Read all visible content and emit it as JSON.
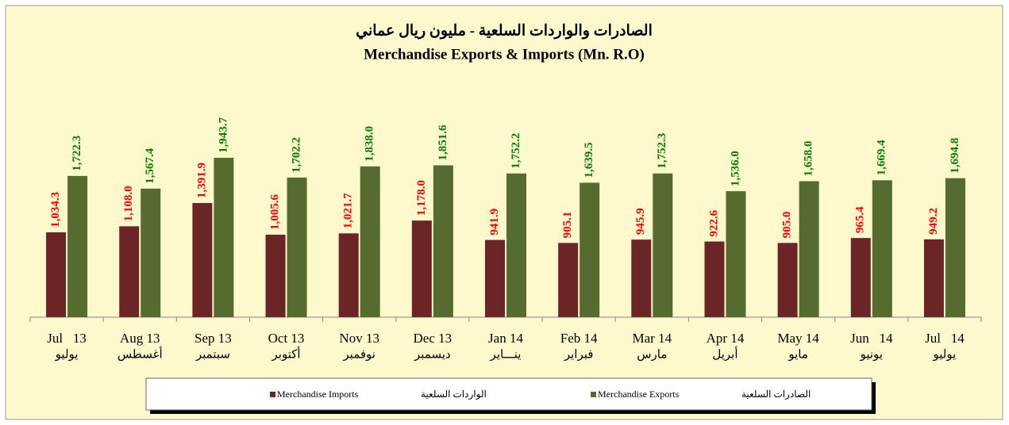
{
  "chart_data": {
    "type": "bar",
    "title": "الصادرات والواردات السلعية - مليون ريال عماني",
    "subtitle": "Merchandise Exports & Imports (Mn. R.O)",
    "categories": [
      [
        "Jul   13",
        "يوليو"
      ],
      [
        "Aug 13",
        "أغسطس"
      ],
      [
        "Sep 13",
        "سبتمبر"
      ],
      [
        "Oct 13",
        "أكتوبر"
      ],
      [
        "Nov 13",
        "نوفمبر"
      ],
      [
        "Dec 13",
        "ديسمبر"
      ],
      [
        "Jan 14",
        "ينـــاير"
      ],
      [
        "Feb 14",
        "فبراير"
      ],
      [
        "Mar 14",
        "مارس"
      ],
      [
        "Apr 14",
        "أبريل"
      ],
      [
        "May 14",
        "مايو"
      ],
      [
        "Jun   14",
        "يونيو"
      ],
      [
        "Jul   14",
        "يوليو"
      ]
    ],
    "series": [
      {
        "name": "Merchandise Imports",
        "name_ar": "الواردات السلعية",
        "color": "#6b2527",
        "label_color": "#ff0000",
        "values": [
          1034.3,
          1108.0,
          1391.9,
          1005.6,
          1021.7,
          1178.0,
          941.9,
          905.1,
          945.9,
          922.6,
          905.0,
          965.4,
          949.2
        ],
        "value_labels": [
          "1,034.3",
          "1,108.0",
          "1,391.9",
          "1,005.6",
          "1,021.7",
          "1,178.0",
          "941.9",
          "905.1",
          "945.9",
          "922.6",
          "905.0",
          "965.4",
          "949.2"
        ]
      },
      {
        "name": "Merchandise Exports",
        "name_ar": "الصادرات السلعية",
        "color": "#566b2f",
        "label_color": "#008000",
        "values": [
          1722.3,
          1567.4,
          1943.7,
          1702.2,
          1838.0,
          1851.6,
          1752.2,
          1639.5,
          1752.3,
          1536.0,
          1658.0,
          1669.4,
          1694.8
        ],
        "value_labels": [
          "1,722.3",
          "1,567.4",
          "1,943.7",
          "1,702.2",
          "1,838.0",
          "1,851.6",
          "1,752.2",
          "1,639.5",
          "1,752.3",
          "1,536.0",
          "1,658.0",
          "1,669.4",
          "1,694.8"
        ]
      }
    ],
    "ylim": [
      0,
      3500
    ]
  }
}
